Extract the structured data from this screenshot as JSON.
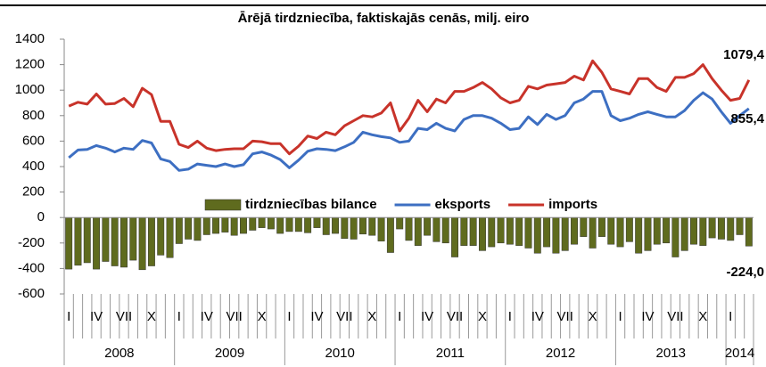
{
  "chart_data": {
    "type": "bar_line",
    "title": "Ārējā tirdzniecība, faktiskajās cenās, milj. eiro",
    "categories": [
      "I",
      null,
      null,
      "IV",
      null,
      null,
      "VII",
      null,
      null,
      "X",
      null,
      null,
      "I",
      null,
      null,
      "IV",
      null,
      null,
      "VII",
      null,
      null,
      "X",
      null,
      null,
      "I",
      null,
      null,
      "IV",
      null,
      null,
      "VII",
      null,
      null,
      "X",
      null,
      null,
      "I",
      null,
      null,
      "IV",
      null,
      null,
      "VII",
      null,
      null,
      "X",
      null,
      null,
      "I",
      null,
      null,
      "IV",
      null,
      null,
      "VII",
      null,
      null,
      "X",
      null,
      null,
      "I",
      null,
      null,
      "IV",
      null,
      null,
      "VII",
      null,
      null,
      "X",
      null,
      null,
      "I",
      null,
      null
    ],
    "years": [
      "2008",
      "2009",
      "2010",
      "2011",
      "2012",
      "2013",
      "2014"
    ],
    "ylim": [
      -600,
      1400
    ],
    "yticks": [
      -600,
      -400,
      -200,
      0,
      200,
      400,
      600,
      800,
      1000,
      1200,
      1400
    ],
    "yticks_labels_note": null,
    "legend": "inside-bottom",
    "series": [
      {
        "name": "tirdzniecības bilance",
        "kind": "bar",
        "color": "#5f6b1e",
        "values": [
          -405,
          -375,
          -355,
          -405,
          -345,
          -380,
          -390,
          -335,
          -410,
          -380,
          -295,
          -315,
          -205,
          -170,
          -180,
          -135,
          -125,
          -115,
          -140,
          -125,
          -100,
          -80,
          -90,
          -125,
          -110,
          -110,
          -120,
          -80,
          -135,
          -125,
          -165,
          -170,
          -130,
          -140,
          -185,
          -275,
          -90,
          -180,
          -220,
          -140,
          -190,
          -200,
          -310,
          -220,
          -220,
          -260,
          -230,
          -200,
          -210,
          -220,
          -240,
          -280,
          -230,
          -280,
          -260,
          -210,
          -150,
          -240,
          -150,
          -210,
          -230,
          -190,
          -280,
          -260,
          -210,
          -200,
          -310,
          -260,
          -210,
          -220,
          -160,
          -170,
          -180,
          -135,
          -224.0
        ],
        "value_labels": [
          null,
          null,
          null,
          null,
          null,
          null,
          null,
          null,
          null,
          null,
          null,
          null,
          null,
          null,
          null,
          null,
          null,
          null,
          null,
          null,
          null,
          null,
          null,
          null,
          null,
          null,
          null,
          null,
          null,
          null,
          null,
          null,
          null,
          null,
          null,
          null,
          null,
          null,
          null,
          null,
          null,
          null,
          null,
          null,
          null,
          null,
          null,
          null,
          null,
          null,
          null,
          null,
          null,
          null,
          null,
          null,
          null,
          null,
          null,
          null,
          null,
          null,
          null,
          null,
          null,
          null,
          null,
          null,
          null,
          null,
          null,
          null,
          null,
          null,
          "-224,0"
        ]
      },
      {
        "name": "eksports",
        "kind": "line",
        "color": "#3d6fc2",
        "values": [
          470,
          530,
          535,
          565,
          545,
          515,
          545,
          535,
          605,
          585,
          460,
          440,
          370,
          380,
          420,
          410,
          400,
          420,
          400,
          415,
          500,
          515,
          490,
          455,
          390,
          450,
          520,
          540,
          535,
          525,
          555,
          590,
          670,
          650,
          635,
          625,
          590,
          600,
          700,
          690,
          740,
          700,
          680,
          770,
          800,
          800,
          780,
          740,
          690,
          700,
          790,
          730,
          810,
          770,
          800,
          900,
          930,
          990,
          990,
          800,
          760,
          780,
          810,
          830,
          810,
          790,
          790,
          840,
          920,
          980,
          930,
          830,
          740,
          800,
          855.4
        ],
        "value_labels": [
          null,
          null,
          null,
          null,
          null,
          null,
          null,
          null,
          null,
          null,
          null,
          null,
          null,
          null,
          null,
          null,
          null,
          null,
          null,
          null,
          null,
          null,
          null,
          null,
          null,
          null,
          null,
          null,
          null,
          null,
          null,
          null,
          null,
          null,
          null,
          null,
          null,
          null,
          null,
          null,
          null,
          null,
          null,
          null,
          null,
          null,
          null,
          null,
          null,
          null,
          null,
          null,
          null,
          null,
          null,
          null,
          null,
          null,
          null,
          null,
          null,
          null,
          null,
          null,
          null,
          null,
          null,
          null,
          null,
          null,
          null,
          null,
          null,
          null,
          "855,4"
        ]
      },
      {
        "name": "imports",
        "kind": "line",
        "color": "#c8332a",
        "values": [
          875,
          905,
          890,
          970,
          890,
          895,
          935,
          870,
          1015,
          965,
          755,
          755,
          575,
          550,
          600,
          545,
          525,
          535,
          540,
          540,
          600,
          595,
          580,
          580,
          500,
          560,
          640,
          620,
          670,
          650,
          720,
          760,
          800,
          790,
          820,
          900,
          680,
          780,
          920,
          830,
          930,
          900,
          990,
          990,
          1020,
          1060,
          1010,
          940,
          900,
          920,
          1030,
          1010,
          1040,
          1050,
          1060,
          1110,
          1080,
          1230,
          1140,
          1010,
          990,
          970,
          1090,
          1090,
          1020,
          990,
          1100,
          1100,
          1130,
          1200,
          1090,
          1000,
          920,
          935,
          1079.4
        ],
        "value_labels": [
          null,
          null,
          null,
          null,
          null,
          null,
          null,
          null,
          null,
          null,
          null,
          null,
          null,
          null,
          null,
          null,
          null,
          null,
          null,
          null,
          null,
          null,
          null,
          null,
          null,
          null,
          null,
          null,
          null,
          null,
          null,
          null,
          null,
          null,
          null,
          null,
          null,
          null,
          null,
          null,
          null,
          null,
          null,
          null,
          null,
          null,
          null,
          null,
          null,
          null,
          null,
          null,
          null,
          null,
          null,
          null,
          null,
          null,
          null,
          null,
          null,
          null,
          null,
          null,
          null,
          null,
          null,
          null,
          null,
          null,
          null,
          null,
          null,
          null,
          "1079,4"
        ]
      }
    ]
  }
}
